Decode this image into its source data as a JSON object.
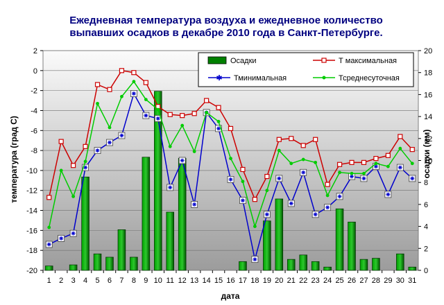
{
  "chart_data": {
    "type": "bar+line",
    "title_lines": [
      "Ежедневная температура воздуха и ежедневное количество",
      "выпавших осадков в декабре 2010 года в Санкт-Петербурге."
    ],
    "xlabel": "дата",
    "ylabel_left": "температура (град С)",
    "ylabel_right": "осадки (мм)",
    "x": [
      1,
      2,
      3,
      4,
      5,
      6,
      7,
      8,
      9,
      10,
      11,
      12,
      13,
      14,
      15,
      16,
      17,
      18,
      19,
      20,
      21,
      22,
      23,
      24,
      25,
      26,
      27,
      28,
      29,
      30,
      31
    ],
    "y_left_range": [
      -20,
      2
    ],
    "y_left_ticks": [
      "2",
      "0",
      "-2",
      "-4",
      "-6",
      "-8",
      "-10",
      "-12",
      "-14",
      "-16",
      "-18",
      "-20"
    ],
    "y_right_range": [
      0,
      20
    ],
    "y_right_ticks": [
      "20",
      "18",
      "16",
      "14",
      "12",
      "10",
      "8",
      "6",
      "4",
      "2",
      "0"
    ],
    "grid": true,
    "legend_position": "top-right",
    "series": [
      {
        "name": "Осадки",
        "kind": "bar",
        "axis": "right",
        "color": "#008000",
        "values": [
          0.4,
          0,
          0.5,
          8.5,
          1.5,
          1.2,
          3.7,
          1.2,
          10.3,
          16.3,
          5.3,
          10.2,
          0,
          0,
          0,
          0,
          0.8,
          0,
          4.5,
          6.5,
          1,
          1.4,
          0.8,
          0.3,
          5.6,
          4.4,
          1,
          1.1,
          0,
          1.5,
          0.3
        ]
      },
      {
        "name": "Т максимальная",
        "kind": "line",
        "axis": "left",
        "color": "#cc0000",
        "values": [
          -12.7,
          -7.1,
          -9.5,
          -7.6,
          -1.4,
          -1.9,
          0,
          -0.2,
          -1.2,
          -3.6,
          -4.4,
          -4.5,
          -4.3,
          -3,
          -3.7,
          -5.8,
          -9.9,
          -12.9,
          -10.6,
          -6.9,
          -6.8,
          -7.5,
          -6.9,
          -11.4,
          -9.4,
          -9.2,
          -9.2,
          -8.8,
          -8.5,
          -6.6,
          -7.9
        ]
      },
      {
        "name": "Тминимальная",
        "kind": "line",
        "axis": "left",
        "color": "#0000cc",
        "values": [
          -17.4,
          -16.8,
          -16.3,
          -9.7,
          -8.0,
          -7.2,
          -6.5,
          -2.3,
          -4.5,
          -4.8,
          -11.7,
          -9.0,
          -13.4,
          -4.2,
          -5.8,
          -10.9,
          -13.0,
          -18.9,
          -14.4,
          -10.8,
          -13.3,
          -10.2,
          -14.4,
          -13.7,
          -12.6,
          -10.6,
          -10.8,
          -9.6,
          -12.4,
          -9.7,
          -10.8
        ]
      },
      {
        "name": "Тсреднесуточная",
        "kind": "line",
        "axis": "left",
        "color": "#00cc00",
        "values": [
          -15.7,
          -10,
          -12.6,
          -9.1,
          -3.3,
          -5.7,
          -2.6,
          -1.1,
          -2.9,
          -3.9,
          -7.6,
          -5.5,
          -8.1,
          -4.2,
          -5.1,
          -8.8,
          -11.1,
          -15.6,
          -12,
          -8,
          -9.3,
          -8.9,
          -9.2,
          -12.5,
          -10.2,
          -10.3,
          -10.3,
          -9.3,
          -9.6,
          -7.8,
          -9.3
        ]
      }
    ]
  }
}
